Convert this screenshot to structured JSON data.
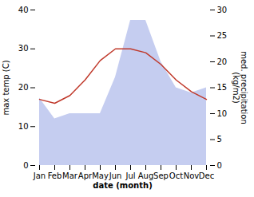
{
  "chart_data": {
    "type": "line",
    "xlabel": "date (month)",
    "ylabel": "max temp (C)",
    "y2label": "med. precipitation\n(kg/m2)",
    "categories": [
      "Jan",
      "Feb",
      "Mar",
      "Apr",
      "May",
      "Jun",
      "Jul",
      "Aug",
      "Sep",
      "Oct",
      "Nov",
      "Dec"
    ],
    "series": [
      {
        "type": "area",
        "axis": "y2",
        "color": "#c5cdf0",
        "values": [
          13,
          9,
          10,
          10,
          10,
          17,
          28,
          28,
          20,
          15,
          14,
          15
        ]
      },
      {
        "type": "line",
        "color": "#c0392b",
        "values": [
          17,
          16,
          18,
          22,
          27,
          30,
          30,
          29,
          26,
          22,
          19,
          17
        ]
      }
    ],
    "ylim": [
      0,
      40
    ],
    "yticks": [
      0,
      10,
      20,
      30,
      40
    ],
    "y2lim": [
      0,
      30
    ],
    "y2ticks": [
      0,
      5,
      10,
      15,
      20,
      25,
      30
    ]
  }
}
